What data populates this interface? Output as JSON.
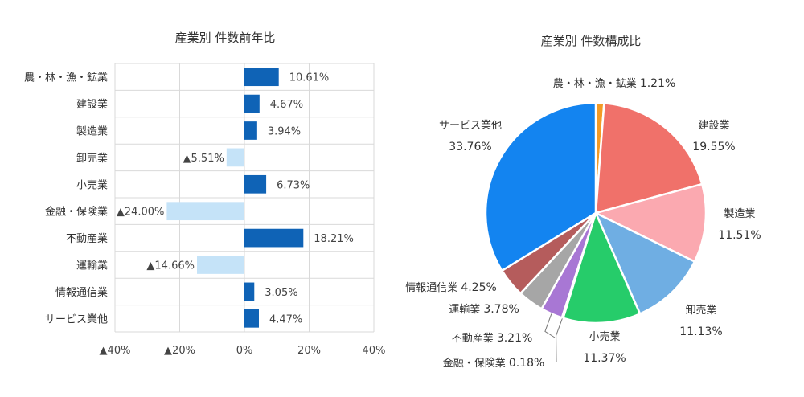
{
  "chart_data": [
    {
      "type": "bar",
      "orientation": "horizontal",
      "title": "産業別 件数前年比",
      "categories": [
        "農・林・漁・鉱業",
        "建設業",
        "製造業",
        "卸売業",
        "小売業",
        "金融・保険業",
        "不動産業",
        "運輸業",
        "情報通信業",
        "サービス業他"
      ],
      "values": [
        10.61,
        4.67,
        3.94,
        -5.51,
        6.73,
        -24.0,
        18.21,
        -14.66,
        3.05,
        4.47
      ],
      "value_labels": [
        "10.61%",
        "4.67%",
        "3.94%",
        "▲5.51%",
        "6.73%",
        "▲24.00%",
        "18.21%",
        "▲14.66%",
        "3.05%",
        "4.47%"
      ],
      "xlim": [
        -40,
        40
      ],
      "xticks": [
        -40,
        -20,
        0,
        20,
        40
      ],
      "xtick_labels": [
        "▲40%",
        "▲20%",
        "0%",
        "20%",
        "40%"
      ],
      "grid": true,
      "colors": {
        "positive": "#0f63b6",
        "negative": "#c5e3f8",
        "grid": "#d9d9d9"
      }
    },
    {
      "type": "pie",
      "title": "産業別 件数構成比",
      "labels": [
        "農・林・漁・鉱業",
        "建設業",
        "製造業",
        "卸売業",
        "小売業",
        "金融・保険業",
        "不動産業",
        "運輸業",
        "情報通信業",
        "サービス業他"
      ],
      "values": [
        1.21,
        19.55,
        11.51,
        11.13,
        11.37,
        0.18,
        3.21,
        3.78,
        4.25,
        33.76
      ],
      "value_labels": [
        "1.21%",
        "19.55%",
        "11.51%",
        "11.13%",
        "11.37%",
        "0.18%",
        "3.21%",
        "3.78%",
        "4.25%",
        "33.76%"
      ],
      "colors": [
        "#f39a25",
        "#f0716a",
        "#fba9b0",
        "#6faee3",
        "#26cc6a",
        "#f2cc2e",
        "#a877d4",
        "#a6a6a6",
        "#b55c5c",
        "#1384f0"
      ],
      "start": "12 o'clock",
      "direction": "clockwise"
    }
  ]
}
